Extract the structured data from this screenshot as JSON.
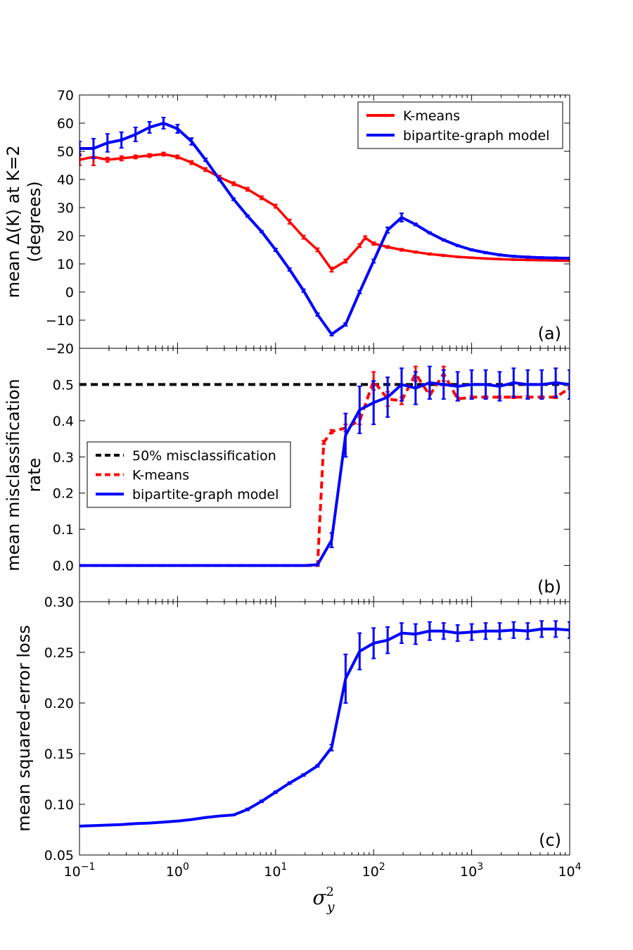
{
  "colors": {
    "kmeans": "#ff0000",
    "bipartite": "#0000ff",
    "threshold": "#000000"
  },
  "xaxis": {
    "label": "σ",
    "label_sup": "2",
    "label_sub": "y",
    "scale": "log",
    "range": [
      0.1,
      10000
    ],
    "ticks": [
      {
        "v": 0.1,
        "base": "10",
        "exp": "−1"
      },
      {
        "v": 1,
        "base": "10",
        "exp": "0"
      },
      {
        "v": 10,
        "base": "10",
        "exp": "1"
      },
      {
        "v": 100,
        "base": "10",
        "exp": "2"
      },
      {
        "v": 1000,
        "base": "10",
        "exp": "3"
      },
      {
        "v": 10000,
        "base": "10",
        "exp": "4"
      }
    ]
  },
  "chart_data": [
    {
      "type": "line",
      "panel": "(a)",
      "ylabel_line1": "mean Δ(K) at K=2",
      "ylabel_line2": "(degrees)",
      "ylim": [
        -20,
        70
      ],
      "yticks": [
        {
          "v": 70,
          "label": "70"
        },
        {
          "v": 60,
          "label": "60"
        },
        {
          "v": 50,
          "label": "50"
        },
        {
          "v": 40,
          "label": "40"
        },
        {
          "v": 30,
          "label": "30"
        },
        {
          "v": 20,
          "label": "20"
        },
        {
          "v": 10,
          "label": "10"
        },
        {
          "v": 0,
          "label": "0"
        },
        {
          "v": -10,
          "label": "−10"
        },
        {
          "v": -20,
          "label": "−20"
        }
      ],
      "legend_position": "top-right",
      "series": [
        {
          "name": "K-means",
          "style": "solid",
          "color": "#ff0000",
          "x": [
            0.1,
            0.139,
            0.193,
            0.268,
            0.373,
            0.518,
            0.72,
            1.0,
            1.39,
            1.93,
            2.68,
            3.73,
            5.18,
            7.2,
            10,
            13.9,
            19.3,
            26.8,
            37.3,
            51.8,
            72,
            82,
            100,
            139,
            193,
            268,
            373,
            518,
            720,
            1000,
            1390,
            1930,
            2680,
            3730,
            5180,
            7200,
            10000
          ],
          "y": [
            47,
            48,
            47,
            47.5,
            48,
            48.5,
            49,
            48,
            46,
            43.5,
            40.8,
            38.5,
            36.5,
            33.5,
            30.5,
            25,
            19.5,
            15,
            8,
            11,
            16.5,
            19.3,
            17.2,
            16,
            15,
            14.2,
            13.5,
            13,
            12.5,
            12.2,
            11.9,
            11.7,
            11.5,
            11.4,
            11.3,
            11.2,
            11.1
          ],
          "err": [
            2,
            3,
            0.8,
            0.8,
            0.6,
            0.6,
            0.6,
            0.6,
            0.6,
            0.6,
            0.6,
            0.6,
            0.6,
            0.6,
            0.6,
            0.8,
            0.6,
            0.6,
            0.8,
            0.6,
            0.6,
            0.6,
            0.5,
            0.4,
            0.4,
            0.3,
            0.3,
            0.3,
            0.2,
            0.2,
            0.2,
            0.2,
            0.2,
            0.2,
            0.2,
            0.2,
            0.2
          ]
        },
        {
          "name": "bipartite-graph model",
          "style": "solid",
          "color": "#0000ff",
          "x": [
            0.1,
            0.139,
            0.193,
            0.268,
            0.373,
            0.518,
            0.72,
            1.0,
            1.39,
            1.93,
            2.68,
            3.73,
            5.18,
            7.2,
            10,
            13.9,
            19.3,
            26.8,
            37.3,
            51.8,
            72,
            100,
            139,
            193,
            268,
            373,
            518,
            720,
            1000,
            1390,
            1930,
            2680,
            3730,
            5180,
            7200,
            10000
          ],
          "y": [
            51,
            51,
            53,
            54,
            56,
            58.5,
            60,
            58,
            53.5,
            47,
            40,
            33,
            27,
            21.5,
            15,
            8,
            0.5,
            -8,
            -15,
            -11.5,
            0,
            11,
            22,
            26.5,
            24,
            21,
            18.5,
            16.5,
            15,
            14,
            13.2,
            12.7,
            12.4,
            12.2,
            12.1,
            12
          ],
          "err": [
            2.5,
            3.5,
            3.2,
            2.8,
            2.5,
            2,
            2,
            1.5,
            1.2,
            0.5,
            0.4,
            0.4,
            0.3,
            0.3,
            0.5,
            0.5,
            0.5,
            0.5,
            0.5,
            0.5,
            0.5,
            0.6,
            1,
            1.5,
            0.4,
            0.3,
            0.3,
            0.3,
            0.3,
            0.3,
            0.3,
            0.3,
            0.3,
            0.3,
            0.3,
            0.3
          ]
        }
      ]
    },
    {
      "type": "line",
      "panel": "(b)",
      "ylabel_line1": "mean misclassification",
      "ylabel_line2": "rate",
      "ylim": [
        -0.1,
        0.6
      ],
      "yticks": [
        {
          "v": 0.5,
          "label": "0.5"
        },
        {
          "v": 0.4,
          "label": "0.4"
        },
        {
          "v": 0.3,
          "label": "0.3"
        },
        {
          "v": 0.2,
          "label": "0.2"
        },
        {
          "v": 0.1,
          "label": "0.1"
        },
        {
          "v": 0.0,
          "label": "0.0"
        }
      ],
      "legend_position": "center-left",
      "series": [
        {
          "name": "50% misclassification",
          "style": "dashed",
          "color": "#000000",
          "x": [
            0.1,
            10000
          ],
          "y": [
            0.5,
            0.5
          ]
        },
        {
          "name": "K-means",
          "style": "dashed",
          "color": "#ff0000",
          "x": [
            0.1,
            0.5,
            1,
            5,
            10,
            20,
            26.8,
            31,
            37.3,
            51.8,
            72,
            100,
            139,
            193,
            268,
            373,
            518,
            720,
            1000,
            1390,
            1930,
            2680,
            3730,
            5180,
            7200,
            10000
          ],
          "y": [
            0,
            0,
            0,
            0,
            0,
            0,
            0,
            0.34,
            0.37,
            0.38,
            0.4,
            0.51,
            0.46,
            0.455,
            0.53,
            0.47,
            0.53,
            0.46,
            0.465,
            0.465,
            0.465,
            0.465,
            0.465,
            0.465,
            0.465,
            0.49
          ],
          "err": [
            0,
            0,
            0,
            0,
            0,
            0,
            0.002,
            0.005,
            0.005,
            0.01,
            0.01,
            0.025,
            0.02,
            0.01,
            0.02,
            0.01,
            0.02,
            0.005,
            0.003,
            0.003,
            0.003,
            0.003,
            0.003,
            0.003,
            0.003,
            0.003
          ]
        },
        {
          "name": "bipartite-graph model",
          "style": "solid",
          "color": "#0000ff",
          "x": [
            0.1,
            0.5,
            1,
            5,
            10,
            20,
            26.8,
            37.3,
            51.8,
            72,
            100,
            139,
            193,
            268,
            373,
            518,
            720,
            1000,
            1390,
            1930,
            2680,
            3730,
            5180,
            7200,
            10000
          ],
          "y": [
            0,
            0,
            0,
            0,
            0,
            0,
            0.002,
            0.07,
            0.36,
            0.43,
            0.45,
            0.465,
            0.5,
            0.49,
            0.505,
            0.5,
            0.495,
            0.5,
            0.5,
            0.495,
            0.505,
            0.5,
            0.5,
            0.505,
            0.5
          ],
          "err": [
            0,
            0,
            0,
            0,
            0,
            0,
            0.002,
            0.02,
            0.06,
            0.065,
            0.06,
            0.055,
            0.045,
            0.045,
            0.045,
            0.04,
            0.04,
            0.04,
            0.04,
            0.04,
            0.04,
            0.04,
            0.04,
            0.04,
            0.04
          ]
        }
      ]
    },
    {
      "type": "line",
      "panel": "(c)",
      "ylabel_line1": "mean squared-error loss",
      "ylabel_line2": "",
      "ylim": [
        0.05,
        0.3
      ],
      "yticks": [
        {
          "v": 0.3,
          "label": "0.30"
        },
        {
          "v": 0.25,
          "label": "0.25"
        },
        {
          "v": 0.2,
          "label": "0.20"
        },
        {
          "v": 0.15,
          "label": "0.15"
        },
        {
          "v": 0.1,
          "label": "0.10"
        },
        {
          "v": 0.05,
          "label": "0.05"
        }
      ],
      "series": [
        {
          "name": "bipartite-graph model",
          "style": "solid",
          "color": "#0000ff",
          "x": [
            0.1,
            0.139,
            0.193,
            0.268,
            0.373,
            0.518,
            0.72,
            1.0,
            1.39,
            1.93,
            2.68,
            3.73,
            5.18,
            7.2,
            10,
            13.9,
            19.3,
            26.8,
            37.3,
            51.8,
            72,
            100,
            139,
            193,
            268,
            373,
            518,
            720,
            1000,
            1390,
            1930,
            2680,
            3730,
            5180,
            7200,
            10000
          ],
          "y": [
            0.0785,
            0.079,
            0.0795,
            0.08,
            0.081,
            0.0815,
            0.0825,
            0.0835,
            0.085,
            0.087,
            0.0885,
            0.0895,
            0.095,
            0.103,
            0.112,
            0.121,
            0.129,
            0.138,
            0.156,
            0.224,
            0.251,
            0.259,
            0.262,
            0.269,
            0.268,
            0.271,
            0.271,
            0.269,
            0.27,
            0.271,
            0.271,
            0.272,
            0.271,
            0.273,
            0.273,
            0.272
          ],
          "err": [
            0,
            0,
            0,
            0,
            0,
            0,
            0,
            0,
            0,
            0,
            0,
            0.0005,
            0.001,
            0.001,
            0.001,
            0.001,
            0.001,
            0.001,
            0.003,
            0.024,
            0.018,
            0.015,
            0.013,
            0.01,
            0.01,
            0.009,
            0.008,
            0.008,
            0.008,
            0.008,
            0.008,
            0.008,
            0.008,
            0.008,
            0.008,
            0.008
          ]
        }
      ]
    }
  ]
}
